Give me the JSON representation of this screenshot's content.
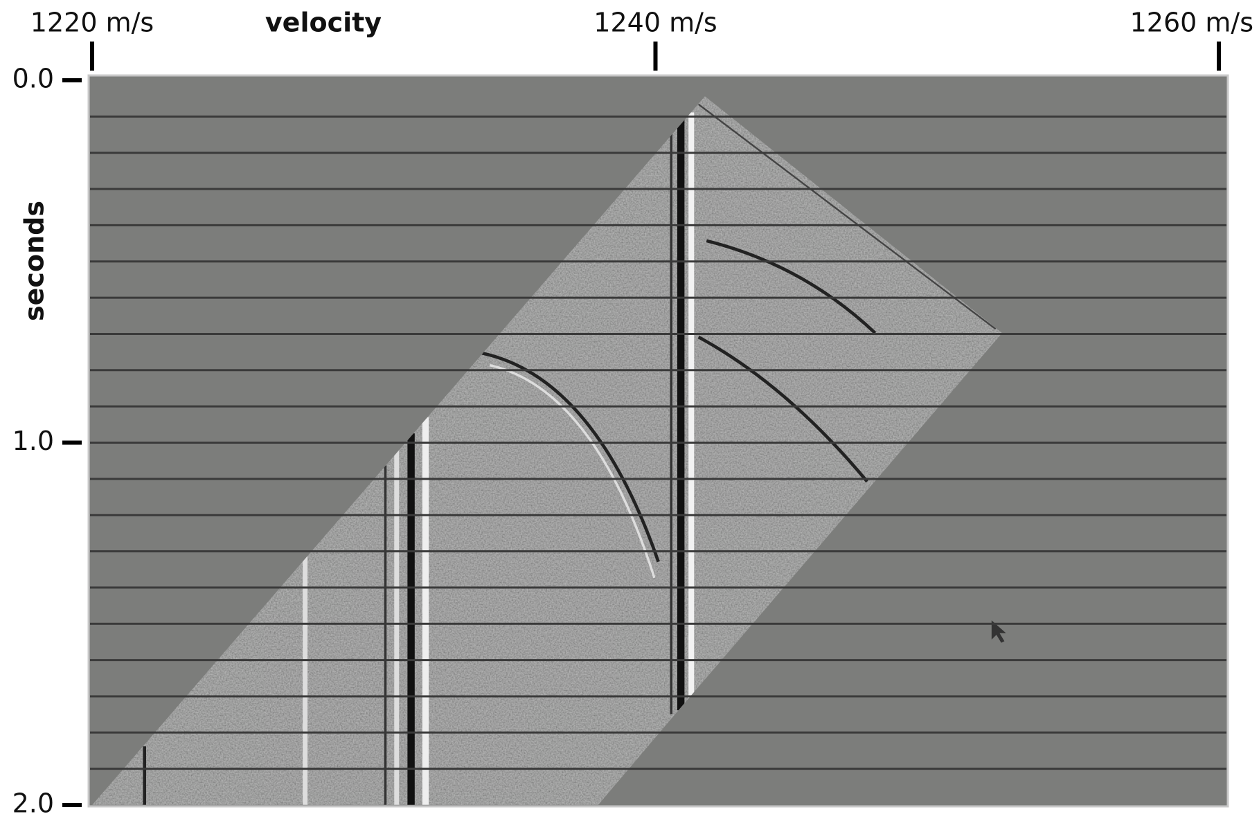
{
  "chart_data": {
    "type": "image",
    "xlabel": "velocity",
    "ylabel": "seconds",
    "xlim": [
      1220,
      1260
    ],
    "xticks": [
      {
        "value": 1220,
        "label": "1220 m/s"
      },
      {
        "value": 1240,
        "label": "1240 m/s"
      },
      {
        "value": 1260,
        "label": "1260 m/s"
      }
    ],
    "ylim": [
      0,
      2
    ],
    "yticks": [
      {
        "value": 0,
        "label": "0.0"
      },
      {
        "value": 1,
        "label": "1.0"
      },
      {
        "value": 2,
        "label": "2.0"
      }
    ]
  }
}
